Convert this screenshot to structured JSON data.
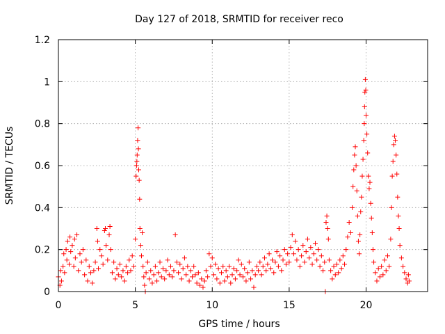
{
  "chart_data": {
    "type": "scatter",
    "title": "Day 127 of 2018, SRMTID for receiver reco",
    "xlabel": "GPS time / hours",
    "ylabel": "SRMTID / TECUs",
    "xlim": [
      0,
      24
    ],
    "ylim": [
      0,
      1.2
    ],
    "grid": true,
    "marker": "+",
    "color": "#ff0000",
    "x_ticks": [
      0,
      5,
      10,
      15,
      20
    ],
    "x_tick_labels": [
      "0",
      "5",
      "10",
      "15",
      "20"
    ],
    "y_ticks": [
      0,
      0.2,
      0.4,
      0.6,
      0.8,
      1.0,
      1.2
    ],
    "y_tick_labels": [
      "0",
      "0.2",
      "0.4",
      "0.6",
      "0.8",
      "1",
      "1.2"
    ],
    "series": [
      {
        "name": "SRMTID",
        "points": [
          [
            0.0,
            0.07
          ],
          [
            0.1,
            0.03
          ],
          [
            0.15,
            0.1
          ],
          [
            0.2,
            0.05
          ],
          [
            0.3,
            0.12
          ],
          [
            0.35,
            0.18
          ],
          [
            0.4,
            0.09
          ],
          [
            0.5,
            0.2
          ],
          [
            0.55,
            0.15
          ],
          [
            0.6,
            0.24
          ],
          [
            0.7,
            0.13
          ],
          [
            0.75,
            0.26
          ],
          [
            0.8,
            0.19
          ],
          [
            0.9,
            0.22
          ],
          [
            1.0,
            0.12
          ],
          [
            1.05,
            0.25
          ],
          [
            1.1,
            0.16
          ],
          [
            1.2,
            0.27
          ],
          [
            1.3,
            0.1
          ],
          [
            1.4,
            0.18
          ],
          [
            1.5,
            0.14
          ],
          [
            1.6,
            0.2
          ],
          [
            1.7,
            0.08
          ],
          [
            1.8,
            0.15
          ],
          [
            1.9,
            0.05
          ],
          [
            2.0,
            0.12
          ],
          [
            2.1,
            0.09
          ],
          [
            2.2,
            0.04
          ],
          [
            2.3,
            0.1
          ],
          [
            2.4,
            0.14
          ],
          [
            2.5,
            0.3
          ],
          [
            2.55,
            0.24
          ],
          [
            2.6,
            0.11
          ],
          [
            2.7,
            0.2
          ],
          [
            2.8,
            0.17
          ],
          [
            2.9,
            0.13
          ],
          [
            3.0,
            0.29
          ],
          [
            3.05,
            0.3
          ],
          [
            3.1,
            0.22
          ],
          [
            3.2,
            0.15
          ],
          [
            3.3,
            0.27
          ],
          [
            3.35,
            0.31
          ],
          [
            3.4,
            0.2
          ],
          [
            3.5,
            0.09
          ],
          [
            3.6,
            0.14
          ],
          [
            3.7,
            0.06
          ],
          [
            3.8,
            0.11
          ],
          [
            3.9,
            0.08
          ],
          [
            4.0,
            0.13
          ],
          [
            4.1,
            0.07
          ],
          [
            4.2,
            0.1
          ],
          [
            4.3,
            0.05
          ],
          [
            4.4,
            0.12
          ],
          [
            4.5,
            0.09
          ],
          [
            4.6,
            0.15
          ],
          [
            4.7,
            0.1
          ],
          [
            4.8,
            0.17
          ],
          [
            4.9,
            0.12
          ],
          [
            5.0,
            0.25
          ],
          [
            5.05,
            0.55
          ],
          [
            5.08,
            0.6
          ],
          [
            5.1,
            0.62
          ],
          [
            5.12,
            0.65
          ],
          [
            5.15,
            0.72
          ],
          [
            5.18,
            0.78
          ],
          [
            5.2,
            0.68
          ],
          [
            5.22,
            0.58
          ],
          [
            5.25,
            0.53
          ],
          [
            5.28,
            0.44
          ],
          [
            5.3,
            0.3
          ],
          [
            5.35,
            0.22
          ],
          [
            5.4,
            0.17
          ],
          [
            5.45,
            0.28
          ],
          [
            5.5,
            0.12
          ],
          [
            5.55,
            0.07
          ],
          [
            5.6,
            0.03
          ],
          [
            5.65,
            0.0
          ],
          [
            5.7,
            0.09
          ],
          [
            5.8,
            0.14
          ],
          [
            5.9,
            0.06
          ],
          [
            6.0,
            0.1
          ],
          [
            6.1,
            0.04
          ],
          [
            6.2,
            0.08
          ],
          [
            6.3,
            0.12
          ],
          [
            6.4,
            0.05
          ],
          [
            6.5,
            0.09
          ],
          [
            6.6,
            0.14
          ],
          [
            6.7,
            0.07
          ],
          [
            6.8,
            0.11
          ],
          [
            6.9,
            0.06
          ],
          [
            7.0,
            0.1
          ],
          [
            7.1,
            0.15
          ],
          [
            7.2,
            0.08
          ],
          [
            7.3,
            0.12
          ],
          [
            7.4,
            0.07
          ],
          [
            7.5,
            0.1
          ],
          [
            7.6,
            0.27
          ],
          [
            7.7,
            0.14
          ],
          [
            7.8,
            0.09
          ],
          [
            7.9,
            0.13
          ],
          [
            8.0,
            0.06
          ],
          [
            8.1,
            0.11
          ],
          [
            8.2,
            0.16
          ],
          [
            8.3,
            0.08
          ],
          [
            8.4,
            0.12
          ],
          [
            8.5,
            0.05
          ],
          [
            8.6,
            0.1
          ],
          [
            8.7,
            0.07
          ],
          [
            8.8,
            0.12
          ],
          [
            8.9,
            0.08
          ],
          [
            9.0,
            0.04
          ],
          [
            9.1,
            0.09
          ],
          [
            9.2,
            0.03
          ],
          [
            9.3,
            0.06
          ],
          [
            9.4,
            0.02
          ],
          [
            9.5,
            0.05
          ],
          [
            9.6,
            0.1
          ],
          [
            9.7,
            0.07
          ],
          [
            9.8,
            0.18
          ],
          [
            9.9,
            0.12
          ],
          [
            10.0,
            0.16
          ],
          [
            10.1,
            0.08
          ],
          [
            10.2,
            0.13
          ],
          [
            10.3,
            0.06
          ],
          [
            10.4,
            0.11
          ],
          [
            10.5,
            0.04
          ],
          [
            10.6,
            0.09
          ],
          [
            10.7,
            0.12
          ],
          [
            10.8,
            0.05
          ],
          [
            10.9,
            0.1
          ],
          [
            11.0,
            0.07
          ],
          [
            11.1,
            0.12
          ],
          [
            11.2,
            0.04
          ],
          [
            11.3,
            0.08
          ],
          [
            11.4,
            0.11
          ],
          [
            11.5,
            0.06
          ],
          [
            11.6,
            0.1
          ],
          [
            11.7,
            0.15
          ],
          [
            11.8,
            0.08
          ],
          [
            11.9,
            0.13
          ],
          [
            12.0,
            0.07
          ],
          [
            12.1,
            0.11
          ],
          [
            12.2,
            0.05
          ],
          [
            12.3,
            0.09
          ],
          [
            12.4,
            0.14
          ],
          [
            12.5,
            0.06
          ],
          [
            12.6,
            0.1
          ],
          [
            12.7,
            0.02
          ],
          [
            12.8,
            0.08
          ],
          [
            12.9,
            0.12
          ],
          [
            13.0,
            0.1
          ],
          [
            13.1,
            0.14
          ],
          [
            13.2,
            0.08
          ],
          [
            13.3,
            0.12
          ],
          [
            13.4,
            0.16
          ],
          [
            13.5,
            0.1
          ],
          [
            13.6,
            0.13
          ],
          [
            13.7,
            0.18
          ],
          [
            13.8,
            0.11
          ],
          [
            13.9,
            0.15
          ],
          [
            14.0,
            0.09
          ],
          [
            14.1,
            0.14
          ],
          [
            14.2,
            0.19
          ],
          [
            14.3,
            0.12
          ],
          [
            14.4,
            0.17
          ],
          [
            14.5,
            0.1
          ],
          [
            14.6,
            0.15
          ],
          [
            14.7,
            0.2
          ],
          [
            14.8,
            0.13
          ],
          [
            14.9,
            0.18
          ],
          [
            15.0,
            0.14
          ],
          [
            15.1,
            0.21
          ],
          [
            15.2,
            0.27
          ],
          [
            15.3,
            0.18
          ],
          [
            15.4,
            0.24
          ],
          [
            15.5,
            0.15
          ],
          [
            15.6,
            0.2
          ],
          [
            15.7,
            0.12
          ],
          [
            15.8,
            0.17
          ],
          [
            15.9,
            0.22
          ],
          [
            16.0,
            0.14
          ],
          [
            16.1,
            0.19
          ],
          [
            16.2,
            0.25
          ],
          [
            16.3,
            0.16
          ],
          [
            16.4,
            0.21
          ],
          [
            16.5,
            0.13
          ],
          [
            16.6,
            0.18
          ],
          [
            16.7,
            0.23
          ],
          [
            16.8,
            0.15
          ],
          [
            16.9,
            0.2
          ],
          [
            17.0,
            0.12
          ],
          [
            17.1,
            0.17
          ],
          [
            17.2,
            0.1
          ],
          [
            17.3,
            0.14
          ],
          [
            17.35,
            0.0
          ],
          [
            17.4,
            0.33
          ],
          [
            17.45,
            0.36
          ],
          [
            17.5,
            0.3
          ],
          [
            17.55,
            0.25
          ],
          [
            17.6,
            0.15
          ],
          [
            17.7,
            0.1
          ],
          [
            17.8,
            0.06
          ],
          [
            17.9,
            0.12
          ],
          [
            18.0,
            0.08
          ],
          [
            18.1,
            0.13
          ],
          [
            18.2,
            0.09
          ],
          [
            18.3,
            0.15
          ],
          [
            18.4,
            0.11
          ],
          [
            18.5,
            0.17
          ],
          [
            18.6,
            0.13
          ],
          [
            18.7,
            0.2
          ],
          [
            18.8,
            0.26
          ],
          [
            18.9,
            0.33
          ],
          [
            19.0,
            0.28
          ],
          [
            19.1,
            0.4
          ],
          [
            19.15,
            0.5
          ],
          [
            19.2,
            0.58
          ],
          [
            19.25,
            0.65
          ],
          [
            19.3,
            0.69
          ],
          [
            19.35,
            0.6
          ],
          [
            19.4,
            0.48
          ],
          [
            19.45,
            0.36
          ],
          [
            19.5,
            0.24
          ],
          [
            19.55,
            0.18
          ],
          [
            19.6,
            0.27
          ],
          [
            19.65,
            0.38
          ],
          [
            19.7,
            0.45
          ],
          [
            19.75,
            0.55
          ],
          [
            19.8,
            0.63
          ],
          [
            19.85,
            0.72
          ],
          [
            19.88,
            0.8
          ],
          [
            19.9,
            0.88
          ],
          [
            19.92,
            0.95
          ],
          [
            19.95,
            1.01
          ],
          [
            19.98,
            0.96
          ],
          [
            20.0,
            0.84
          ],
          [
            20.05,
            0.75
          ],
          [
            20.1,
            0.66
          ],
          [
            20.15,
            0.55
          ],
          [
            20.2,
            0.49
          ],
          [
            20.25,
            0.52
          ],
          [
            20.3,
            0.42
          ],
          [
            20.35,
            0.35
          ],
          [
            20.4,
            0.28
          ],
          [
            20.45,
            0.2
          ],
          [
            20.5,
            0.14
          ],
          [
            20.6,
            0.09
          ],
          [
            20.7,
            0.05
          ],
          [
            20.8,
            0.11
          ],
          [
            20.9,
            0.07
          ],
          [
            21.0,
            0.12
          ],
          [
            21.1,
            0.08
          ],
          [
            21.2,
            0.15
          ],
          [
            21.3,
            0.1
          ],
          [
            21.4,
            0.17
          ],
          [
            21.5,
            0.12
          ],
          [
            21.6,
            0.25
          ],
          [
            21.65,
            0.4
          ],
          [
            21.7,
            0.55
          ],
          [
            21.75,
            0.62
          ],
          [
            21.8,
            0.7
          ],
          [
            21.85,
            0.74
          ],
          [
            21.9,
            0.72
          ],
          [
            21.95,
            0.65
          ],
          [
            22.0,
            0.56
          ],
          [
            22.05,
            0.45
          ],
          [
            22.1,
            0.36
          ],
          [
            22.15,
            0.3
          ],
          [
            22.2,
            0.22
          ],
          [
            22.3,
            0.16
          ],
          [
            22.4,
            0.12
          ],
          [
            22.5,
            0.09
          ],
          [
            22.6,
            0.06
          ],
          [
            22.7,
            0.04
          ],
          [
            22.75,
            0.08
          ],
          [
            22.8,
            0.05
          ]
        ]
      }
    ]
  }
}
